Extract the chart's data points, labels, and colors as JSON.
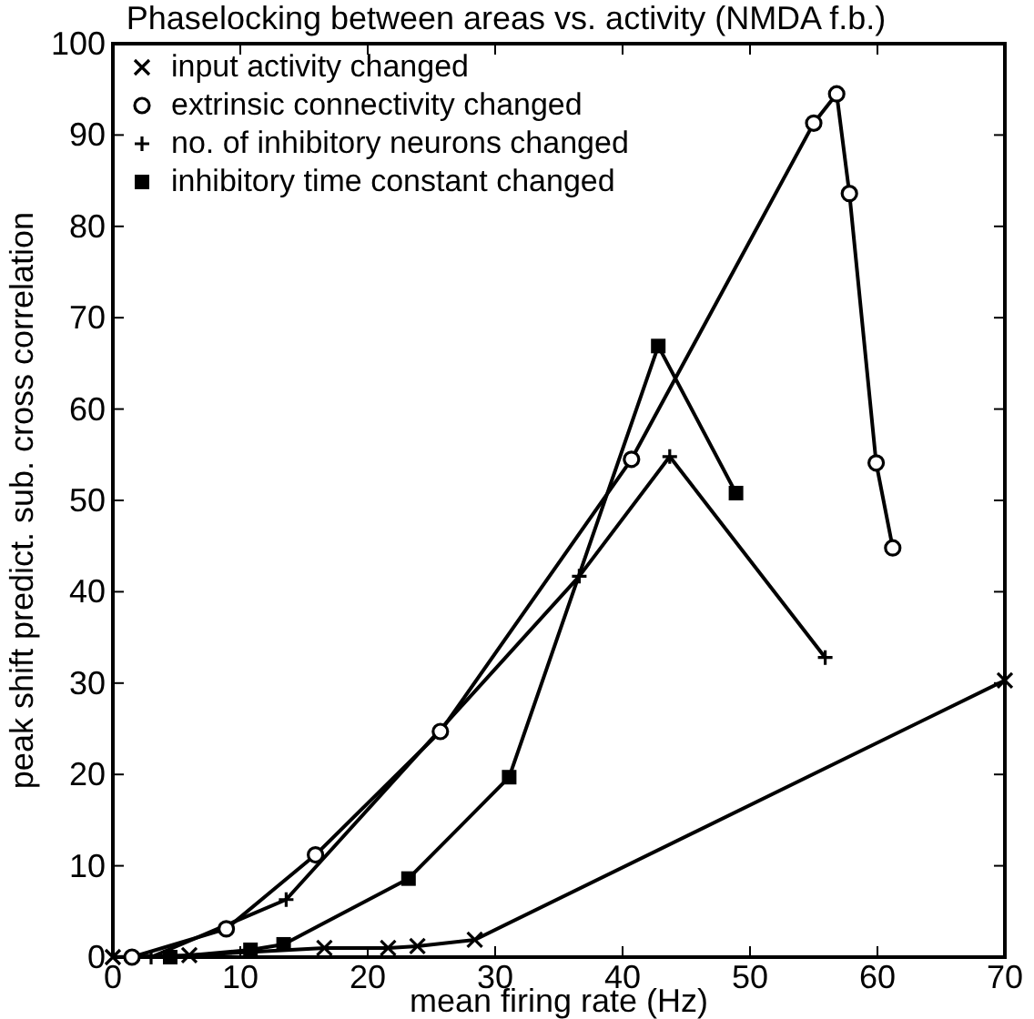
{
  "chart_data": {
    "type": "line",
    "title": "Phaselocking between areas vs. activity  (NMDA f.b.)",
    "xlabel": "mean firing rate (Hz)",
    "ylabel": "peak shift predict. sub. cross correlation",
    "xlim": [
      0,
      70
    ],
    "xticks": [
      0,
      10,
      20,
      30,
      40,
      50,
      60,
      70
    ],
    "ylim": [
      0,
      100
    ],
    "yticks": [
      0,
      10,
      20,
      30,
      40,
      50,
      60,
      70,
      80,
      90,
      100
    ],
    "grid": false,
    "legend": "top left",
    "line_style": "solid",
    "series": [
      {
        "name": "input activity changed",
        "color": "#000000",
        "marker": "cross",
        "x": [
          0,
          6,
          16.6,
          21.6,
          23.9,
          28.4,
          70
        ],
        "values": [
          0,
          0.2,
          1,
          1,
          1.2,
          1.9,
          30.3
        ]
      },
      {
        "name": "extrinsic connectivity changed",
        "color": "#000000",
        "marker": "circle",
        "x": [
          1.5,
          8.9,
          15.9,
          25.7,
          40.7,
          55,
          56.8,
          57.8,
          59.9,
          61.2
        ],
        "values": [
          0,
          3.1,
          11.2,
          24.7,
          54.5,
          91.3,
          94.5,
          83.6,
          54.1,
          44.8
        ]
      },
      {
        "name": "no. of inhibitory neurons changed",
        "color": "#000000",
        "marker": "plus",
        "x": [
          3,
          13.6,
          36.6,
          43.7,
          55.9
        ],
        "values": [
          0,
          6.3,
          41.7,
          54.8,
          32.8
        ]
      },
      {
        "name": "inhibitory time constant changed",
        "color": "#000000",
        "marker": "square",
        "x": [
          4.5,
          10.8,
          13.4,
          23.2,
          31.1,
          42.8,
          48.9
        ],
        "values": [
          0,
          0.8,
          1.4,
          8.6,
          19.7,
          66.9,
          50.8
        ]
      }
    ]
  }
}
